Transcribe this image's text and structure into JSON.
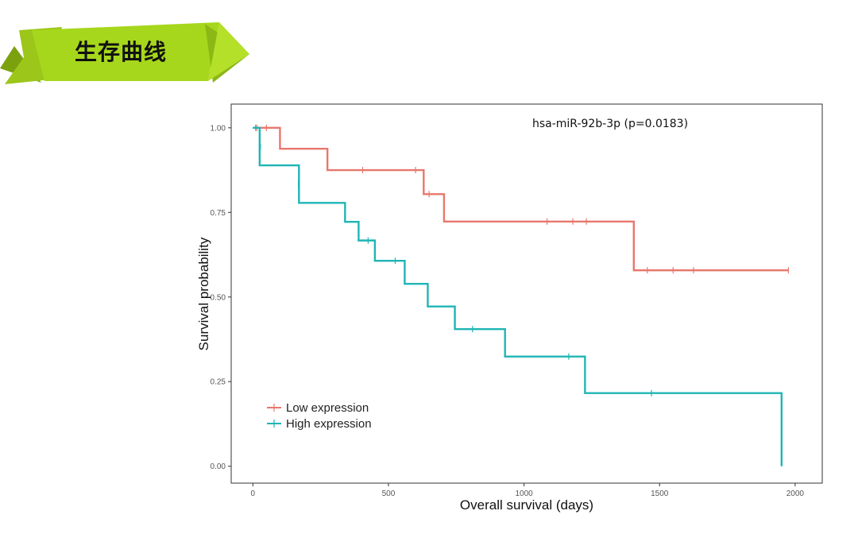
{
  "slide": {
    "title": "生存曲线",
    "accent_color": "#a6d71c"
  },
  "chart_data": {
    "type": "line",
    "subtype": "kaplan-meier-step",
    "title": "hsa-miR-92b-3p (p=0.0183)",
    "xlabel": "Overall survival (days)",
    "ylabel": "Survival probability",
    "xlim": [
      -80,
      2100
    ],
    "ylim": [
      -0.05,
      1.07
    ],
    "x_ticks": [
      0,
      500,
      1000,
      1500,
      2000
    ],
    "y_ticks": [
      0,
      0.25,
      0.5,
      0.75,
      1.0
    ],
    "y_tick_labels": [
      "0.00",
      "0.25",
      "0.50",
      "0.75",
      "1.00"
    ],
    "grid": false,
    "legend_position": "bottom-left",
    "series": [
      {
        "name": "Low expression",
        "color": "#e8776d",
        "steps": [
          [
            0,
            1.0
          ],
          [
            100,
            0.938
          ],
          [
            275,
            0.875
          ],
          [
            630,
            0.804
          ],
          [
            705,
            0.723
          ],
          [
            1405,
            0.579
          ],
          [
            1975,
            0.579
          ]
        ],
        "censored": [
          [
            15,
            1.0
          ],
          [
            50,
            1.0
          ],
          [
            405,
            0.875
          ],
          [
            600,
            0.875
          ],
          [
            650,
            0.804
          ],
          [
            1085,
            0.723
          ],
          [
            1180,
            0.723
          ],
          [
            1230,
            0.723
          ],
          [
            1455,
            0.579
          ],
          [
            1550,
            0.579
          ],
          [
            1625,
            0.579
          ],
          [
            1975,
            0.579
          ]
        ]
      },
      {
        "name": "High expression",
        "color": "#1fb5b5",
        "steps": [
          [
            0,
            1.0
          ],
          [
            25,
            0.889
          ],
          [
            170,
            0.778
          ],
          [
            340,
            0.722
          ],
          [
            390,
            0.667
          ],
          [
            450,
            0.607
          ],
          [
            560,
            0.539
          ],
          [
            645,
            0.472
          ],
          [
            745,
            0.405
          ],
          [
            930,
            0.324
          ],
          [
            1225,
            0.216
          ],
          [
            1950,
            0.0
          ]
        ],
        "censored": [
          [
            10,
            1.0
          ],
          [
            28,
            0.944
          ],
          [
            168,
            0.833
          ],
          [
            425,
            0.667
          ],
          [
            525,
            0.607
          ],
          [
            810,
            0.405
          ],
          [
            1165,
            0.324
          ],
          [
            1470,
            0.216
          ]
        ]
      }
    ]
  }
}
